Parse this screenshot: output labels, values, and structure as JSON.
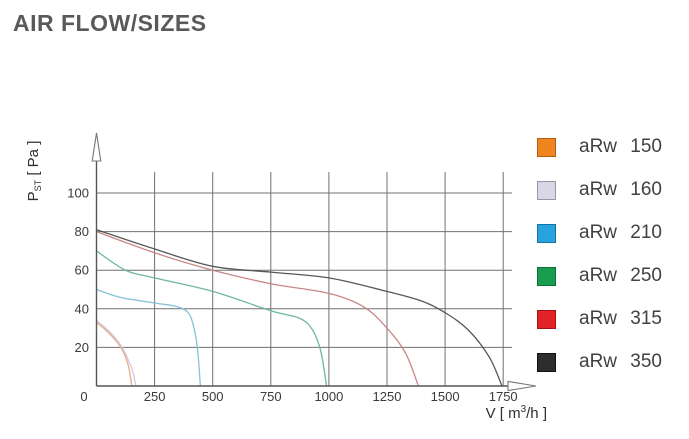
{
  "page": {
    "title": "AIR FLOW/SIZES",
    "background": "#ffffff",
    "title_color": "#58595b"
  },
  "axis": {
    "y_label": {
      "main": "P",
      "sub": "ST",
      "rest": " [ Pa ]"
    },
    "x_label": {
      "main": "V [ m",
      "sup": "3",
      "rest": "/h ]"
    },
    "origin_label": "0"
  },
  "chart_data": {
    "type": "line",
    "title": "AIR FLOW/SIZES",
    "xlabel": "V [ m³/h ]",
    "ylabel": "Pst [ Pa ]",
    "xlim": [
      0,
      1790
    ],
    "ylim": [
      0,
      110
    ],
    "x_ticks": [
      0,
      250,
      500,
      750,
      1000,
      1250,
      1500,
      1750
    ],
    "y_ticks": [
      0,
      20,
      40,
      60,
      80,
      100
    ],
    "grid": true,
    "legend_position": "right",
    "grid_color": "#707070",
    "axis_color": "#555555",
    "tick_color": "#3a3a3a",
    "series": [
      {
        "name": "aRw 150",
        "legend_color": "#f08421",
        "legend_border": "#b35f0d",
        "plot_color": "#e5a77c",
        "points": [
          [
            0,
            33
          ],
          [
            40,
            29
          ],
          [
            80,
            24
          ],
          [
            105,
            20
          ],
          [
            125,
            15
          ],
          [
            140,
            9
          ],
          [
            152,
            0
          ]
        ]
      },
      {
        "name": "aRw 160",
        "legend_color": "#d9d6e6",
        "legend_border": "#9894ad",
        "plot_color": "#ccc6da",
        "points": [
          [
            0,
            34
          ],
          [
            40,
            30
          ],
          [
            80,
            25
          ],
          [
            110,
            20
          ],
          [
            135,
            14
          ],
          [
            155,
            8
          ],
          [
            170,
            0
          ]
        ]
      },
      {
        "name": "aRw 210",
        "legend_color": "#29a3dd",
        "legend_border": "#1474a5",
        "plot_color": "#7fc0d6",
        "points": [
          [
            0,
            50
          ],
          [
            100,
            46
          ],
          [
            250,
            43
          ],
          [
            350,
            41
          ],
          [
            400,
            37
          ],
          [
            425,
            27
          ],
          [
            438,
            15
          ],
          [
            447,
            0
          ]
        ]
      },
      {
        "name": "aRw 250",
        "legend_color": "#1a9c50",
        "legend_border": "#0e6f37",
        "plot_color": "#68b29c",
        "points": [
          [
            0,
            70
          ],
          [
            125,
            60
          ],
          [
            250,
            56
          ],
          [
            500,
            49
          ],
          [
            750,
            39
          ],
          [
            875,
            35
          ],
          [
            930,
            29
          ],
          [
            965,
            18
          ],
          [
            990,
            0
          ]
        ]
      },
      {
        "name": "aRw 315",
        "legend_color": "#e32227",
        "legend_border": "#9e1418",
        "plot_color": "#c57f7e",
        "points": [
          [
            0,
            80
          ],
          [
            250,
            69
          ],
          [
            500,
            60
          ],
          [
            750,
            53
          ],
          [
            1000,
            48
          ],
          [
            1150,
            41
          ],
          [
            1250,
            30
          ],
          [
            1330,
            17
          ],
          [
            1385,
            0
          ]
        ]
      },
      {
        "name": "aRw 350",
        "legend_color": "#2d2d2d",
        "legend_border": "#111111",
        "plot_color": "#4f4f4f",
        "points": [
          [
            0,
            81
          ],
          [
            250,
            71
          ],
          [
            500,
            62
          ],
          [
            750,
            59
          ],
          [
            1000,
            56
          ],
          [
            1250,
            49
          ],
          [
            1400,
            44
          ],
          [
            1500,
            38
          ],
          [
            1600,
            29
          ],
          [
            1690,
            15
          ],
          [
            1745,
            0
          ]
        ]
      }
    ]
  }
}
